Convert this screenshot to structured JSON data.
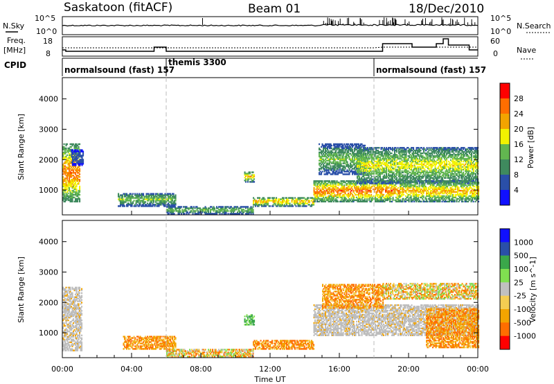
{
  "header": {
    "title": "Saskatoon (fitACF)",
    "beam": "Beam 01",
    "date": "18/Dec/2010"
  },
  "strip": {
    "nsky_label": "N.Sky",
    "nsearch_label": "N.Search",
    "freq_label_line1": "Freq.",
    "freq_label_line2": "[MHz]",
    "nave_label": "Nave",
    "cpid_label": "CPID",
    "noise_left_ticks": [
      "10^5",
      "10^0"
    ],
    "noise_right_ticks": [
      "10^5",
      "10^0"
    ],
    "freq_ticks": [
      "18",
      "8"
    ],
    "nave_ticks": [
      "60",
      "0"
    ]
  },
  "cpid_segments": [
    {
      "label": "normalsound (fast) 157",
      "start_hour": 0
    },
    {
      "label": "themis 3300",
      "start_hour": 6
    },
    {
      "label": "normalsound (fast) 157",
      "start_hour": 18
    }
  ],
  "colors": {
    "power_scale": [
      "#1010ff",
      "#2a4fa8",
      "#3f8a5e",
      "#62b650",
      "#f2f200",
      "#f3a400",
      "#ff6e00",
      "#ff0000"
    ],
    "velocity_scale": [
      "#ff0000",
      "#ff6e00",
      "#f3a400",
      "#f4cd52",
      "#c0c0c0",
      "#80e050",
      "#3aa74a",
      "#2a4fa8",
      "#1010ff"
    ],
    "ground_scatter": "#bdbdbd",
    "noise_line": "#000000"
  },
  "chart_data": [
    {
      "type": "heatmap",
      "panel": "power",
      "xlabel": "",
      "ylabel": "Slant Range [km]",
      "ylim": [
        180,
        4700
      ],
      "yticks": [
        "1000",
        "2000",
        "3000",
        "4000"
      ],
      "xlim_hours": [
        0,
        24
      ],
      "colorbar_label": "Power [dB]",
      "colorbar_ticks": [
        "4",
        "8",
        "12",
        "16",
        "20",
        "24",
        "28"
      ],
      "colorbar_range": [
        0,
        30
      ],
      "scatter_regions": [
        {
          "t0": 0.0,
          "t1": 1.0,
          "r0": 600,
          "r1": 2500,
          "peak": 28
        },
        {
          "t0": 0.5,
          "t1": 1.2,
          "r0": 1800,
          "r1": 2300,
          "peak": 8
        },
        {
          "t0": 3.2,
          "t1": 6.5,
          "r0": 450,
          "r1": 900,
          "peak": 16
        },
        {
          "t0": 6.0,
          "t1": 11.0,
          "r0": 200,
          "r1": 450,
          "peak": 16
        },
        {
          "t0": 11.0,
          "t1": 14.5,
          "r0": 450,
          "r1": 750,
          "peak": 24
        },
        {
          "t0": 10.5,
          "t1": 11.1,
          "r0": 1250,
          "r1": 1600,
          "peak": 24
        },
        {
          "t0": 14.5,
          "t1": 19.5,
          "r0": 600,
          "r1": 1300,
          "peak": 28
        },
        {
          "t0": 14.8,
          "t1": 17.5,
          "r0": 1500,
          "r1": 2500,
          "peak": 16
        },
        {
          "t0": 17.0,
          "t1": 24.0,
          "r0": 1200,
          "r1": 2400,
          "peak": 20
        },
        {
          "t0": 19.5,
          "t1": 24.0,
          "r0": 600,
          "r1": 1300,
          "peak": 24
        }
      ]
    },
    {
      "type": "heatmap",
      "panel": "velocity",
      "xlabel": "Time UT",
      "ylabel": "Slant Range [km]",
      "ylim": [
        180,
        4700
      ],
      "yticks": [
        "1000",
        "2000",
        "3000",
        "4000"
      ],
      "xticks": [
        "00:00",
        "04:00",
        "08:00",
        "12:00",
        "16:00",
        "20:00",
        "00:00"
      ],
      "xlim_hours": [
        0,
        24
      ],
      "colorbar_label": "Velocity [m s^-1]",
      "colorbar_ticks": [
        "1000",
        "500",
        "100",
        "25",
        "-25",
        "-100",
        "-500",
        "-1000"
      ],
      "scatter_regions": [
        {
          "t0": 0.0,
          "t1": 1.1,
          "r0": 400,
          "r1": 2500,
          "class": "ground"
        },
        {
          "t0": 3.5,
          "t1": 6.5,
          "r0": 450,
          "r1": 900,
          "class": "negative"
        },
        {
          "t0": 6.0,
          "t1": 11.0,
          "r0": 200,
          "r1": 450,
          "class": "mixed"
        },
        {
          "t0": 10.5,
          "t1": 11.1,
          "r0": 1250,
          "r1": 1600,
          "class": "positive"
        },
        {
          "t0": 11.0,
          "t1": 14.5,
          "r0": 450,
          "r1": 750,
          "class": "negative"
        },
        {
          "t0": 14.5,
          "t1": 24.0,
          "r0": 900,
          "r1": 1900,
          "class": "ground"
        },
        {
          "t0": 15.0,
          "t1": 18.5,
          "r0": 1800,
          "r1": 2600,
          "class": "negative"
        },
        {
          "t0": 18.5,
          "t1": 24.0,
          "r0": 2100,
          "r1": 2600,
          "class": "mixed"
        },
        {
          "t0": 21.0,
          "t1": 24.0,
          "r0": 500,
          "r1": 1800,
          "class": "negative"
        }
      ]
    }
  ]
}
